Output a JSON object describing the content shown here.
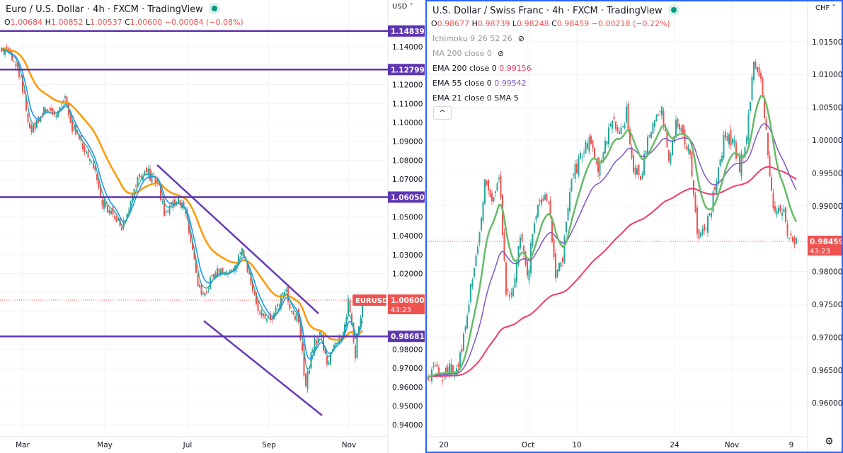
{
  "left": {
    "title": "Euro / U.S. Dollar · 4h · FXCM · TradingView",
    "ohlc": {
      "o_label": "O",
      "o": "1.00684",
      "h_label": "H",
      "h": "1.00852",
      "l_label": "L",
      "l": "1.00537",
      "c_label": "C",
      "c": "1.00600",
      "change": "−0.00084 (−0.08%)"
    },
    "currency": "USD",
    "symbol_tag": "EURUSD",
    "last_price": "1.00600",
    "countdown": "43:23",
    "levels": [
      "1.14839",
      "1.12799",
      "1.06050",
      "0.98681"
    ]
  },
  "right": {
    "title": "U.S. Dollar / Swiss Franc · 4h · FXCM · TradingView",
    "ohlc": {
      "o_label": "O",
      "o": "0.98677",
      "h_label": "H",
      "h": "0.98739",
      "l_label": "L",
      "l": "0.98248",
      "c_label": "C",
      "c": "0.98459",
      "change": "−0.00218 (−0.22%)"
    },
    "currency": "CHF",
    "last_price": "0.98459",
    "countdown": "43:23",
    "legend": [
      {
        "label": "Ichimoku 9 26 52 26",
        "hidden": true
      },
      {
        "label": "MA 200 close 0",
        "hidden": true
      },
      {
        "label": "EMA 200 close 0",
        "value": "0.99156",
        "color": "#f23a6a"
      },
      {
        "label": "EMA 55 close 0",
        "value": "0.99542",
        "color": "#7e57c2"
      },
      {
        "label": "EMA 21 close 0 SMA 5"
      }
    ],
    "collapse_label": "^"
  },
  "colors": {
    "up": "#26a69a",
    "down": "#ef5350",
    "level": "#5e35b1",
    "accent_border": "#2962ff",
    "ema_orange": "#ff9800",
    "ema_blue": "#2196f3",
    "ema_teal": "#26a69a",
    "ema200": "#f23a6a",
    "ema55": "#7e57c2",
    "ema21": "#66bb6a"
  },
  "chart_data": [
    {
      "type": "candlestick",
      "title": "Euro / U.S. Dollar · 4h · FXCM",
      "closes": [
        1.139,
        1.136,
        1.133,
        1.118,
        1.095,
        1.1,
        1.108,
        1.104,
        1.106,
        1.112,
        1.097,
        1.09,
        1.086,
        1.078,
        1.06,
        1.054,
        1.052,
        1.042,
        1.056,
        1.068,
        1.074,
        1.072,
        1.07,
        1.052,
        1.056,
        1.058,
        1.052,
        1.03,
        1.01,
        1.012,
        1.02,
        1.021,
        1.02,
        1.024,
        1.034,
        1.017,
        1.004,
        0.998,
        0.994,
        1.002,
        1.013,
        1.0,
        0.996,
        0.96,
        0.982,
        0.988,
        0.972,
        0.984,
        0.986,
        1.004,
        0.978,
        1.006
      ],
      "x_ticks": [
        {
          "label": "Mar",
          "index": 3
        },
        {
          "label": "May",
          "index": 14.6
        },
        {
          "label": "Jul",
          "index": 26.3
        },
        {
          "label": "Sep",
          "index": 37.8
        },
        {
          "label": "Nov",
          "index": 49.1
        }
      ],
      "y_ticks": [
        "1.14000",
        "1.13000",
        "1.12000",
        "1.11000",
        "1.10000",
        "1.09000",
        "1.08000",
        "1.07000",
        "1.06000",
        "1.05000",
        "1.04000",
        "1.03000",
        "1.02000",
        "1.01000",
        "1.00000",
        "0.99000",
        "0.98000",
        "0.97000",
        "0.96000",
        "0.95000",
        "0.94000"
      ],
      "ylim": [
        0.93,
        1.155
      ],
      "horizontal_levels": [
        1.14839,
        1.12799,
        1.0605,
        0.98681
      ],
      "trendlines": [
        {
          "from": {
            "date": "Jun 9",
            "price": 1.0775
          },
          "to": {
            "date": "Oct 8",
            "price": 0.9989
          }
        },
        {
          "from": {
            "date": "Jul 14",
            "price": 0.995
          },
          "to": {
            "date": "Oct 10",
            "price": 0.945
          }
        }
      ],
      "last": 1.006
    },
    {
      "type": "candlestick",
      "title": "U.S. Dollar / Swiss Franc · 4h · FXCM",
      "closes": [
        0.964,
        0.965,
        0.9645,
        0.965,
        0.9645,
        0.97,
        0.978,
        0.983,
        0.994,
        0.99,
        0.995,
        0.976,
        0.978,
        0.986,
        0.979,
        0.988,
        0.992,
        0.99,
        0.98,
        0.982,
        0.993,
        0.996,
        0.999,
        1.0,
        0.995,
        0.999,
        1.003,
        1.0,
        1.004,
        0.996,
        0.994,
        1.0,
        1.003,
        1.005,
        0.997,
        1.002,
        1.001,
        0.998,
        0.985,
        0.986,
        0.99,
        0.996,
        1.001,
        1.0,
        0.996,
        1.0,
        1.012,
        1.01,
        0.998,
        0.988,
        0.99,
        0.985,
        0.98459
      ],
      "x_ticks": [
        {
          "label": "20",
          "index": 2.2
        },
        {
          "label": "Oct",
          "index": 14.1
        },
        {
          "label": "10",
          "index": 21
        },
        {
          "label": "24",
          "index": 34.8
        },
        {
          "label": "Nov",
          "index": 42.9
        },
        {
          "label": "9",
          "index": 51.3
        }
      ],
      "y_ticks": [
        "1.01500",
        "1.01000",
        "1.00500",
        "1.00000",
        "0.99500",
        "0.99000",
        "0.98500",
        "0.98000",
        "0.97500",
        "0.97000",
        "0.96500",
        "0.96000"
      ],
      "ylim": [
        0.955,
        1.018
      ],
      "last": 0.98459
    }
  ]
}
